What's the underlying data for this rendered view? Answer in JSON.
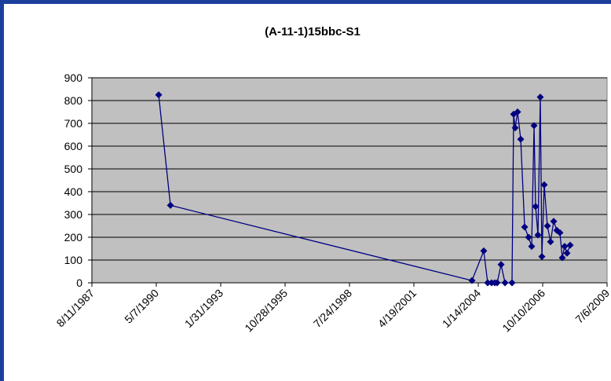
{
  "chart_data": {
    "type": "line",
    "title": "(A-11-1)15bbc-S1",
    "x": [
      "1990-06-13",
      "1990-12-13",
      "2003-10-08",
      "2004-04-08",
      "2004-06-08",
      "2004-08-08",
      "2004-09-26",
      "2004-11-02",
      "2005-01-02",
      "2005-03-04",
      "2005-06-21",
      "2005-07-16",
      "2005-08-09",
      "2005-09-15",
      "2005-11-03",
      "2006-01-03",
      "2006-03-04",
      "2006-04-22",
      "2006-05-29",
      "2006-06-22",
      "2006-07-29",
      "2006-09-03",
      "2006-09-28",
      "2006-11-03",
      "2006-12-22",
      "2007-02-09",
      "2007-03-30",
      "2007-05-18",
      "2007-07-05",
      "2007-08-11",
      "2007-09-16",
      "2007-10-23",
      "2007-12-11"
    ],
    "series": [
      {
        "color": "#000080",
        "values": [
          825,
          340,
          10,
          140,
          0,
          0,
          0,
          0,
          80,
          0,
          0,
          740,
          680,
          750,
          630,
          245,
          200,
          160,
          690,
          335,
          210,
          815,
          115,
          430,
          250,
          180,
          270,
          230,
          220,
          110,
          160,
          130,
          165
        ]
      }
    ],
    "xlim": [
      "1987-08-11",
      "2009-07-06"
    ],
    "xticks": [
      {
        "value": "1987-08-11",
        "label": "8/11/1987"
      },
      {
        "value": "1990-05-07",
        "label": "5/7/1990"
      },
      {
        "value": "1993-01-31",
        "label": "1/31/1993"
      },
      {
        "value": "1995-10-28",
        "label": "10/28/1995"
      },
      {
        "value": "1998-07-24",
        "label": "7/24/1998"
      },
      {
        "value": "2001-04-19",
        "label": "4/19/2001"
      },
      {
        "value": "2004-01-14",
        "label": "1/14/2004"
      },
      {
        "value": "2006-10-10",
        "label": "10/10/2006"
      },
      {
        "value": "2009-07-06",
        "label": "7/6/2009"
      }
    ],
    "ylim": [
      0,
      900
    ],
    "yticks": [
      0,
      100,
      200,
      300,
      400,
      500,
      600,
      700,
      800,
      900
    ],
    "grid": true,
    "plot_color": "#c0c0c0"
  }
}
